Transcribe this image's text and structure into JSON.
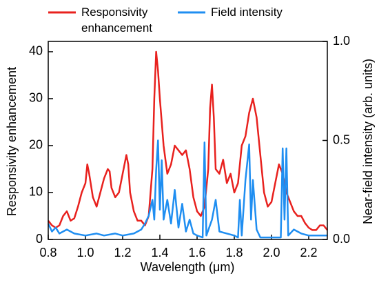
{
  "chart_data": {
    "type": "line",
    "xlabel": "Wavelength (μm)",
    "ylabel": "Responsivity enhancement",
    "y2label": "Near-field intensity (arb. units)",
    "xlim": [
      0.8,
      2.3
    ],
    "xticks": [
      0.8,
      {
        "value": 1,
        "label": "1.0"
      },
      1.2,
      1.4,
      1.6,
      1.8,
      {
        "value": 2,
        "label": "2.0"
      },
      2.2
    ],
    "ylim": [
      0,
      42.2
    ],
    "yticks": [
      0,
      10,
      20,
      30,
      40
    ],
    "y2lim": [
      0,
      1
    ],
    "y2ticks": [
      {
        "value": 0,
        "label": "0.0"
      },
      0.5,
      {
        "value": 1,
        "label": "1.0"
      }
    ],
    "series": [
      {
        "name": "Responsivity enhancement",
        "color": "#e8211e",
        "axis": "y",
        "x": [
          0.8,
          0.82,
          0.84,
          0.86,
          0.88,
          0.9,
          0.92,
          0.94,
          0.96,
          0.98,
          1.0,
          1.01,
          1.02,
          1.04,
          1.06,
          1.08,
          1.1,
          1.12,
          1.13,
          1.14,
          1.16,
          1.18,
          1.2,
          1.22,
          1.23,
          1.24,
          1.26,
          1.28,
          1.3,
          1.32,
          1.34,
          1.36,
          1.37,
          1.38,
          1.39,
          1.4,
          1.42,
          1.44,
          1.46,
          1.48,
          1.5,
          1.52,
          1.54,
          1.56,
          1.58,
          1.6,
          1.62,
          1.64,
          1.66,
          1.67,
          1.68,
          1.69,
          1.7,
          1.72,
          1.74,
          1.76,
          1.78,
          1.8,
          1.82,
          1.84,
          1.86,
          1.88,
          1.9,
          1.92,
          1.94,
          1.96,
          1.98,
          2.0,
          2.02,
          2.04,
          2.06,
          2.08,
          2.1,
          2.12,
          2.14,
          2.16,
          2.18,
          2.2,
          2.22,
          2.24,
          2.26,
          2.28,
          2.3
        ],
        "values": [
          4,
          3,
          2.5,
          3,
          5,
          6,
          4,
          4.5,
          7,
          10,
          12,
          16,
          14,
          9,
          7,
          10,
          13,
          15,
          14.5,
          11,
          9,
          10,
          14,
          18,
          16,
          10,
          6,
          4,
          4,
          3,
          5,
          15,
          30,
          40,
          36,
          30,
          20,
          14,
          16,
          20,
          19,
          18,
          19,
          15,
          9,
          6,
          5,
          7,
          15,
          28,
          33,
          26,
          15,
          14,
          17,
          12,
          14,
          10,
          12,
          20,
          22,
          27,
          30,
          26,
          18,
          10,
          7,
          8,
          12,
          16,
          14,
          10,
          8,
          6,
          5,
          5,
          3.5,
          2.5,
          2,
          2,
          3,
          3,
          2
        ]
      },
      {
        "name": "Field intensity",
        "color": "#1f8ef1",
        "axis": "y2",
        "x": [
          0.8,
          0.82,
          0.84,
          0.86,
          0.9,
          0.94,
          1.0,
          1.06,
          1.1,
          1.16,
          1.2,
          1.26,
          1.3,
          1.32,
          1.34,
          1.36,
          1.37,
          1.38,
          1.39,
          1.4,
          1.41,
          1.42,
          1.44,
          1.46,
          1.48,
          1.5,
          1.52,
          1.54,
          1.56,
          1.58,
          1.6,
          1.63,
          1.64,
          1.65,
          1.68,
          1.7,
          1.72,
          1.76,
          1.8,
          1.82,
          1.83,
          1.84,
          1.86,
          1.88,
          1.89,
          1.9,
          1.92,
          1.94,
          2.0,
          2.05,
          2.06,
          2.07,
          2.08,
          2.09,
          2.12,
          2.16,
          2.2,
          2.24,
          2.3
        ],
        "values": [
          0.08,
          0.04,
          0.06,
          0.03,
          0.05,
          0.03,
          0.02,
          0.03,
          0.02,
          0.03,
          0.02,
          0.03,
          0.05,
          0.08,
          0.12,
          0.2,
          0.1,
          0.35,
          0.5,
          0.15,
          0.4,
          0.1,
          0.2,
          0.08,
          0.25,
          0.06,
          0.18,
          0.04,
          0.1,
          0.03,
          0.02,
          0.01,
          0.49,
          0.02,
          0.1,
          0.2,
          0.04,
          0.03,
          0.02,
          0.01,
          0.2,
          0.02,
          0.3,
          0.48,
          0.1,
          0.3,
          0.05,
          0.01,
          0.01,
          0.01,
          0.46,
          0.1,
          0.46,
          0.02,
          0.05,
          0.03,
          0.02,
          0.02,
          0.02
        ]
      }
    ]
  }
}
